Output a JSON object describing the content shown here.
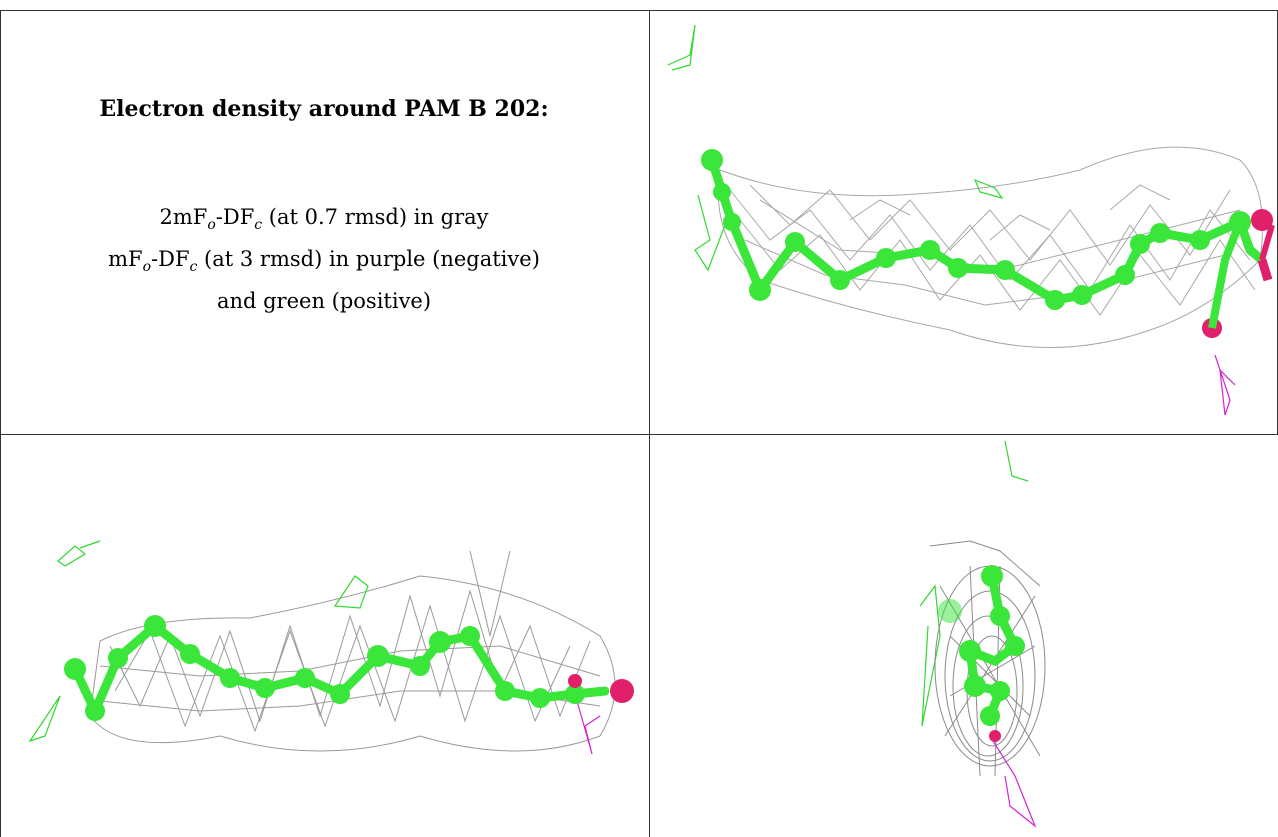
{
  "caption": {
    "title": "Electron density around PAM B 202:",
    "line1": {
      "prefix": "2mF",
      "sub1": "o",
      "mid": "-DF",
      "sub2": "c",
      "suffix": " (at 0.7 rmsd) in gray"
    },
    "line2": {
      "prefix": "mF",
      "sub1": "o",
      "mid": "-DF",
      "sub2": "c",
      "suffix": " (at 3 rmsd) in purple (negative)"
    },
    "line3": "and green (positive)"
  },
  "colors": {
    "carbon": "#39e639",
    "oxygen": "#e0206a",
    "mesh_gray": "#9a9a9a",
    "positive": "#22dd22",
    "negative": "#dd22dd"
  },
  "panels": [
    "top-right-view",
    "bottom-left-view",
    "bottom-right-view"
  ]
}
